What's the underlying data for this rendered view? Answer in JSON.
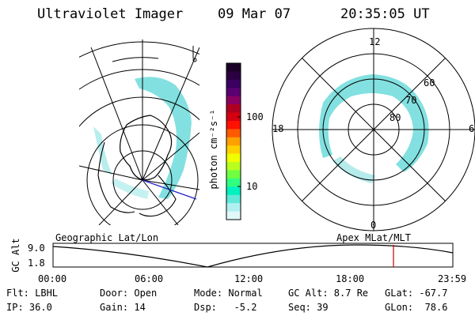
{
  "header": {
    "instrument": "Ultraviolet Imager",
    "date": "09 Mar 07",
    "time": "20:35:05 UT"
  },
  "colorbar": {
    "unit_label": "photon cm⁻²s⁻¹",
    "ticks": [
      "100",
      "10"
    ],
    "colors": [
      "#1a0026",
      "#2b0040",
      "#3b0060",
      "#5a0070",
      "#8a0060",
      "#b00020",
      "#d40010",
      "#ff1000",
      "#ff5a00",
      "#ffa000",
      "#ffd000",
      "#f0ff00",
      "#b8ff20",
      "#70ff40",
      "#30ff80",
      "#00f0c0",
      "#60e8d8",
      "#b0f0f0",
      "#e0f8f8"
    ]
  },
  "polar_plot": {
    "mlt_labels": [
      "12",
      "18",
      "6",
      "0"
    ],
    "lat_labels": [
      "60",
      "70",
      "80"
    ],
    "colors": {
      "aurora": "#5ad6d6"
    }
  },
  "timeline": {
    "left_label": "Geographic Lat/Lon",
    "right_label": "Apex MLat/MLT",
    "y_title": "GC Alt",
    "y_ticks": [
      "9.0",
      "1.8"
    ],
    "x_ticks": [
      "00:00",
      "06:00",
      "12:00",
      "18:00",
      "23:59"
    ],
    "current_time_marker": "20:35",
    "colors": {
      "marker": "#cc0000"
    }
  },
  "info": {
    "filter": "Flt: LBHL",
    "ip": "IP: 36.0",
    "door": "Door: Open",
    "gain": "Gain: 14",
    "mode": "Mode: Normal",
    "dsp": "Dsp:   -5.2",
    "gc_alt": "GC Alt: 8.7 Re",
    "seq": "Seq: 39",
    "glat": "GLat: -67.7",
    "glon": "GLon:  78.6"
  }
}
